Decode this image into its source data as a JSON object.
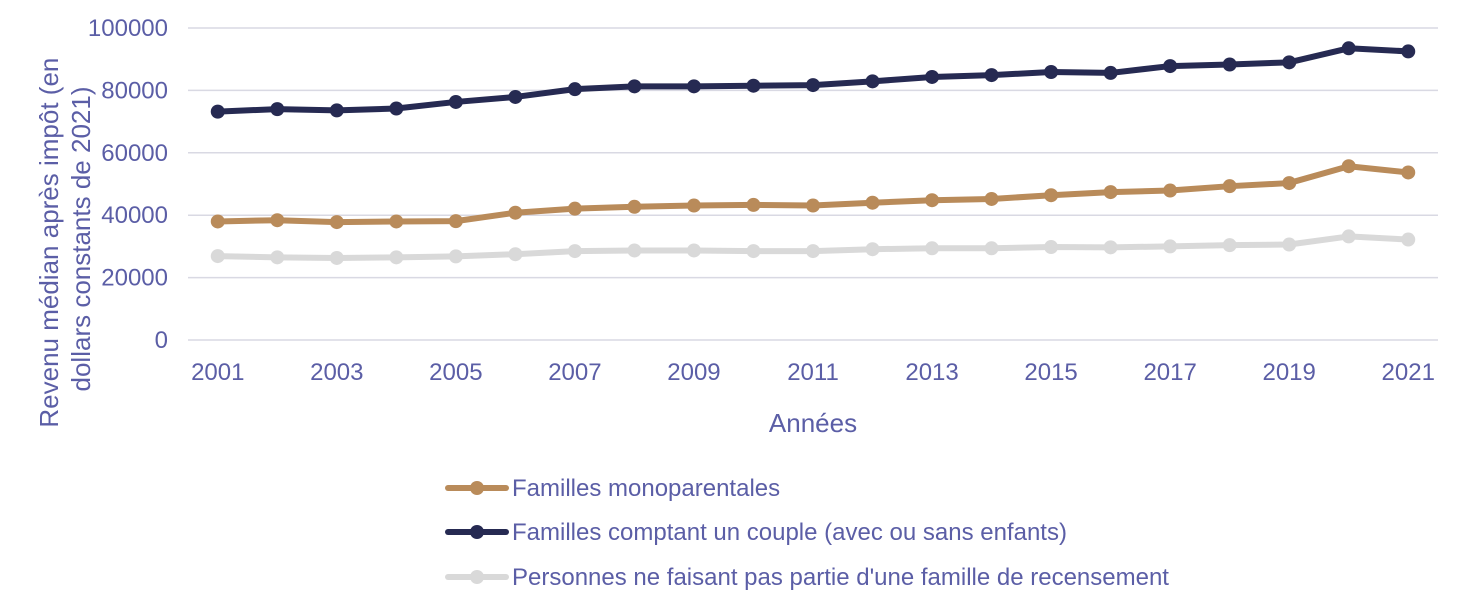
{
  "chart_data": {
    "type": "line",
    "xlabel": "Années",
    "ylabel_lines": [
      "Revenu médian après impôt (en",
      "dollars constants de 2021)"
    ],
    "ylim": [
      0,
      100000
    ],
    "y_ticks": [
      "0",
      "20000",
      "40000",
      "60000",
      "80000",
      "100000"
    ],
    "x": [
      2001,
      2002,
      2003,
      2004,
      2005,
      2006,
      2007,
      2008,
      2009,
      2010,
      2011,
      2012,
      2013,
      2014,
      2015,
      2016,
      2017,
      2018,
      2019,
      2020,
      2021
    ],
    "x_ticks": [
      "2001",
      "2003",
      "2005",
      "2007",
      "2009",
      "2011",
      "2013",
      "2015",
      "2017",
      "2019",
      "2021"
    ],
    "grid": true,
    "legend_position": "bottom",
    "series": [
      {
        "name": "Familles monoparentales",
        "color": "#b98b5a",
        "values": [
          38000,
          38400,
          37800,
          38000,
          38100,
          40800,
          42100,
          42700,
          43100,
          43300,
          43100,
          44000,
          44800,
          45200,
          46400,
          47400,
          47900,
          49300,
          50300,
          55700,
          53700
        ]
      },
      {
        "name": "Familles comptant un couple (avec ou sans enfants)",
        "color": "#262a52",
        "values": [
          73200,
          74000,
          73600,
          74200,
          76300,
          77900,
          80400,
          81300,
          81300,
          81500,
          81700,
          82900,
          84300,
          84900,
          85900,
          85600,
          87800,
          88300,
          89000,
          93500,
          92500
        ]
      },
      {
        "name": "Personnes ne faisant pas partie d'une famille de recensement",
        "color": "#d9d9d9",
        "values": [
          26900,
          26500,
          26300,
          26500,
          26800,
          27500,
          28500,
          28700,
          28700,
          28500,
          28500,
          29100,
          29400,
          29400,
          29800,
          29700,
          30000,
          30400,
          30600,
          33200,
          32200
        ]
      }
    ]
  }
}
